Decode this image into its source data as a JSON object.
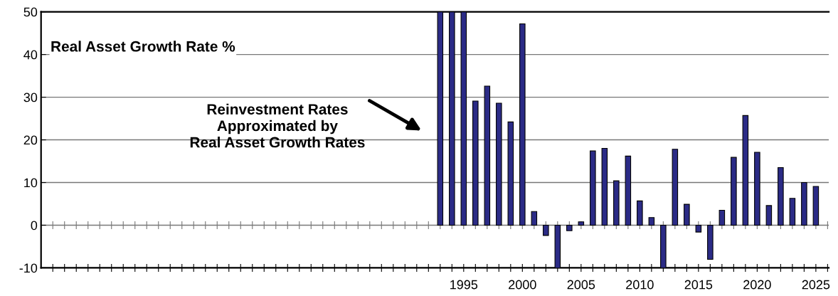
{
  "chart_data": {
    "type": "bar",
    "categories": [
      null,
      null,
      null,
      null,
      null,
      null,
      null,
      null,
      null,
      null,
      null,
      null,
      null,
      null,
      null,
      null,
      null,
      null,
      null,
      null,
      null,
      null,
      null,
      null,
      null,
      null,
      null,
      null,
      null,
      null,
      null,
      null,
      null,
      null,
      null,
      "1995",
      null,
      null,
      null,
      null,
      "2000",
      null,
      null,
      null,
      null,
      "2005",
      null,
      null,
      null,
      null,
      "2010",
      null,
      null,
      null,
      null,
      "2015",
      null,
      null,
      null,
      null,
      "2020",
      null,
      null,
      null,
      null,
      "2025",
      null
    ],
    "values": [
      null,
      null,
      null,
      null,
      null,
      null,
      null,
      null,
      null,
      null,
      null,
      null,
      null,
      null,
      null,
      null,
      null,
      null,
      null,
      null,
      null,
      null,
      null,
      null,
      null,
      null,
      null,
      null,
      null,
      null,
      null,
      null,
      null,
      50,
      50,
      50,
      29.1,
      32.6,
      28.6,
      24.2,
      47.2,
      3.2,
      -2.4,
      -10,
      -1.3,
      0.8,
      17.4,
      18.0,
      10.4,
      16.2,
      5.7,
      1.8,
      -10,
      17.8,
      4.9,
      -1.6,
      -8.0,
      3.5,
      15.9,
      25.7,
      17.1,
      4.6,
      13.5,
      6.3,
      10.0,
      9.1,
      null
    ],
    "color": "#2b2b86",
    "ylim": [
      -10,
      50
    ],
    "yticks": [
      -10,
      0,
      10,
      20,
      30,
      40,
      50
    ],
    "grid": "y",
    "annotations": [
      "Real Asset Growth Rate %",
      "Reinvestment Rates\nApproximated by\nReal Asset Growth Rates"
    ]
  }
}
